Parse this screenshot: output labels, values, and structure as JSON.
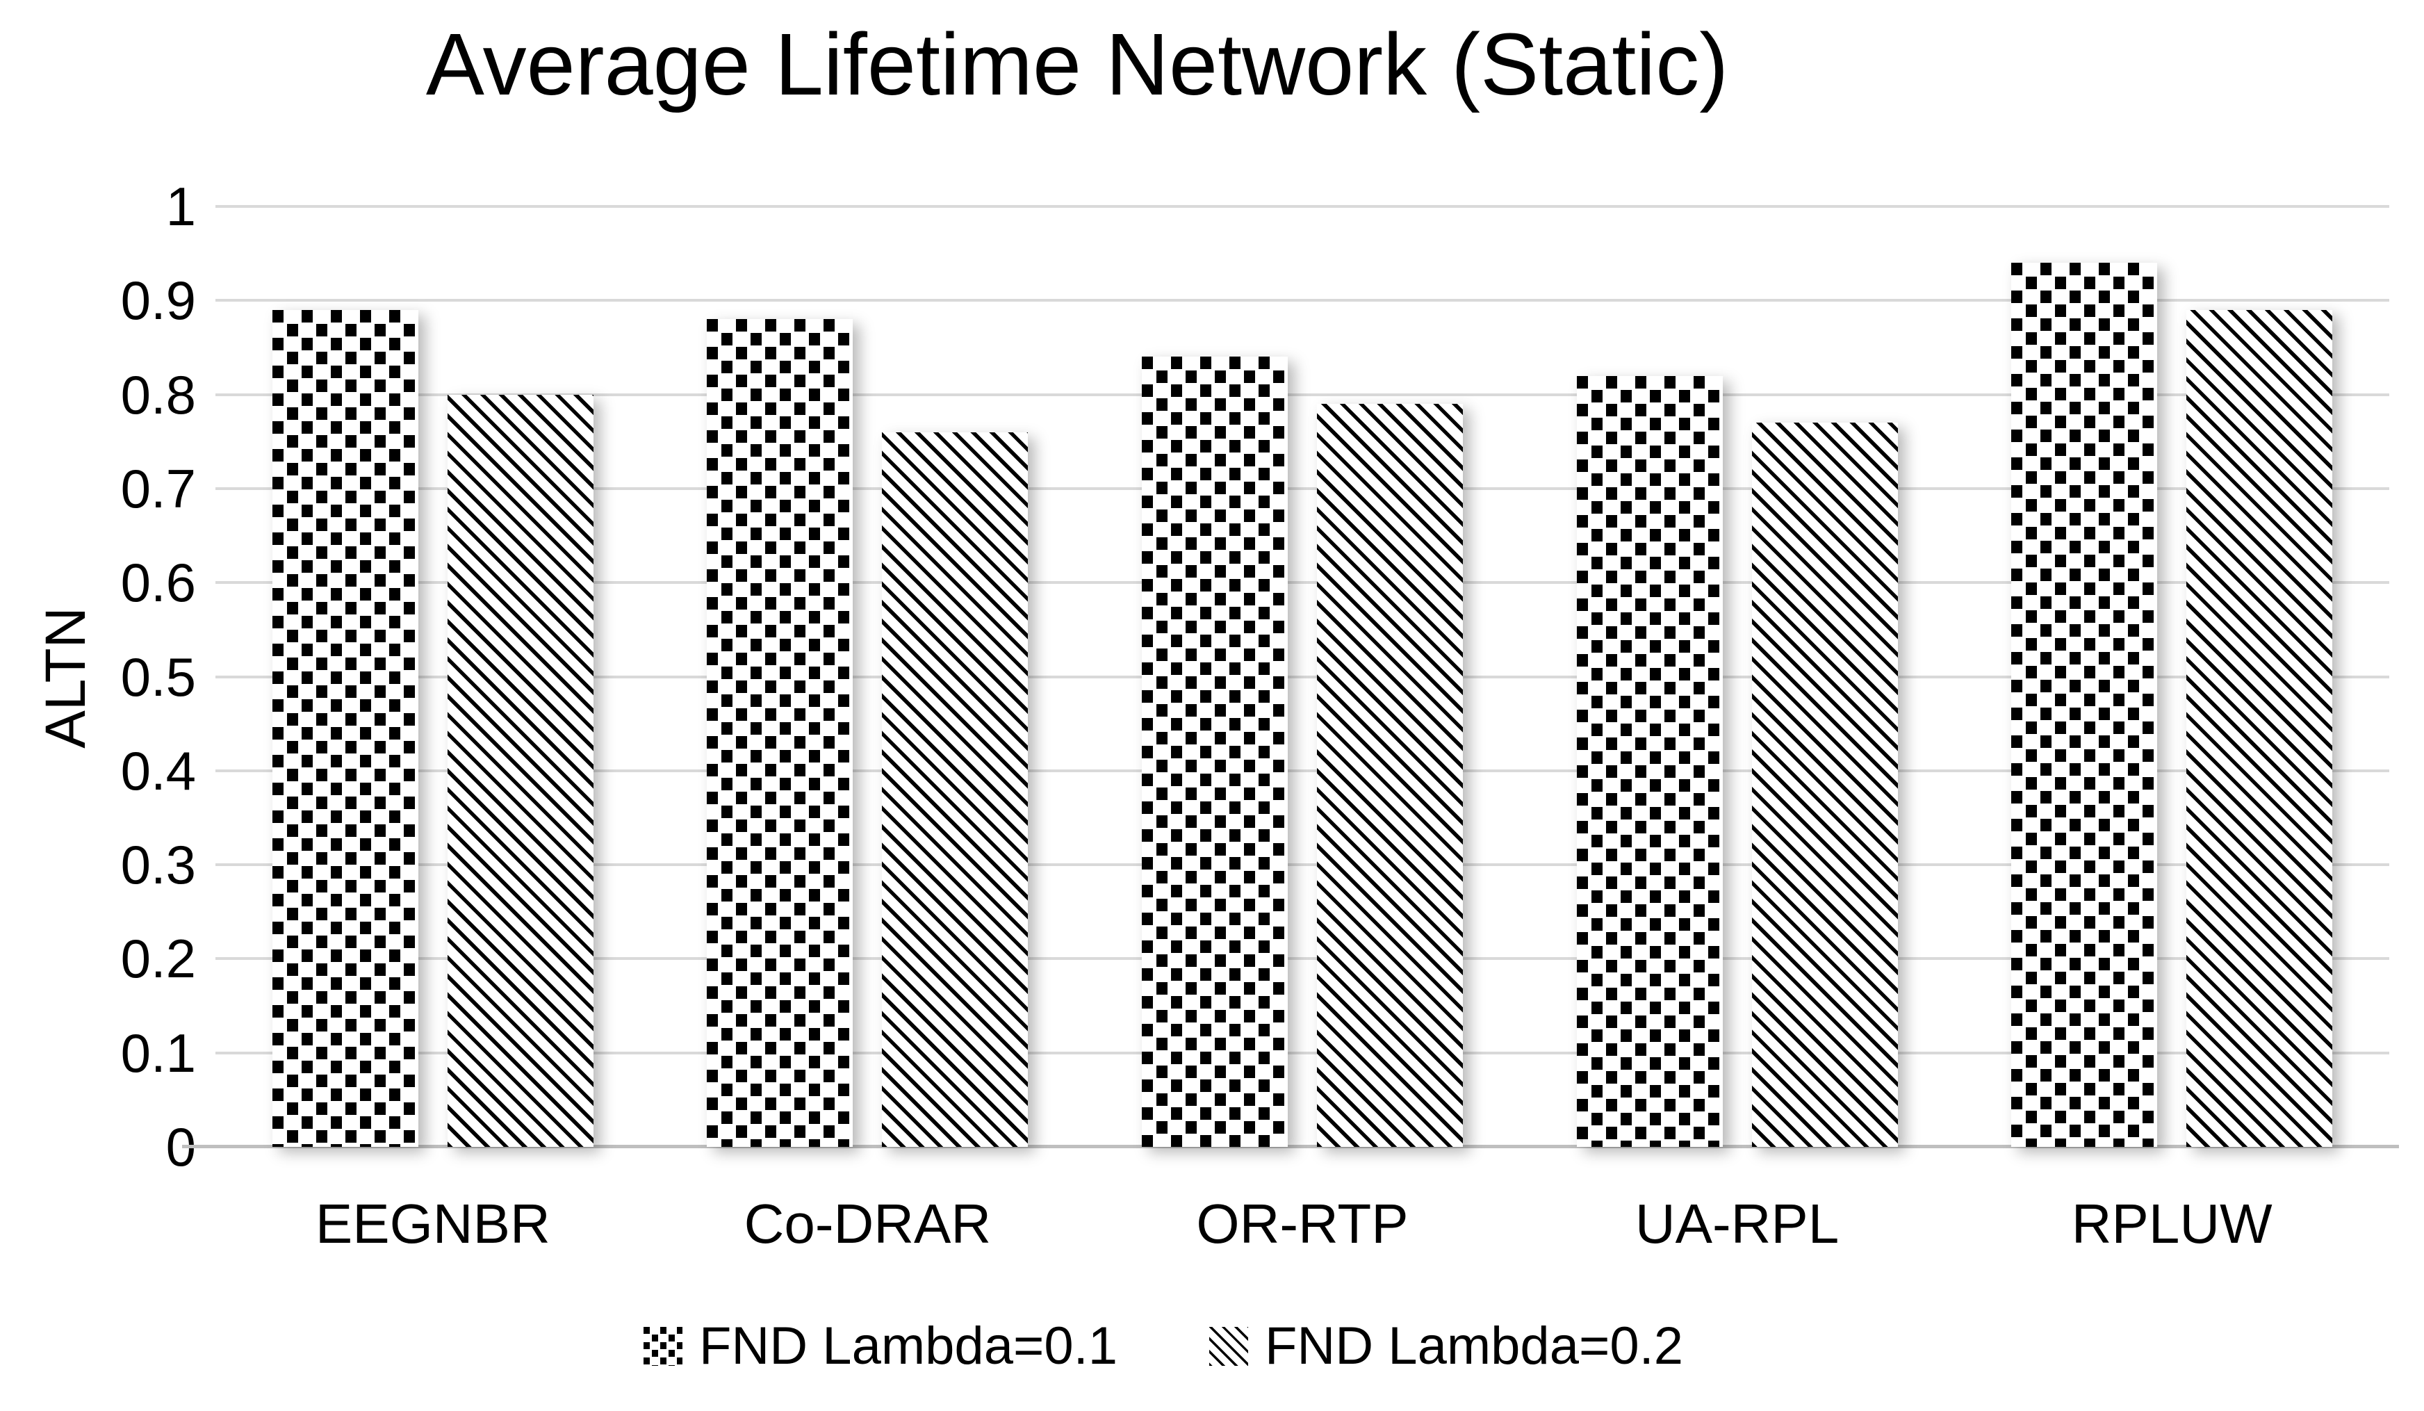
{
  "chart_data": {
    "type": "bar",
    "title": "Average Lifetime Network (Static)",
    "categories": [
      "EEGNBR",
      "Co-DRAR",
      "OR-RTP",
      "UA-RPL",
      "RPLUW"
    ],
    "series": [
      {
        "name": "FND Lambda=0.1",
        "pattern": "black-checker-on-white",
        "values": [
          0.89,
          0.88,
          0.84,
          0.82,
          0.94
        ]
      },
      {
        "name": "FND Lambda=0.2",
        "pattern": "black-diagonal-stripes-on-white",
        "values": [
          0.8,
          0.76,
          0.79,
          0.77,
          0.89
        ]
      }
    ],
    "xlabel": "",
    "ylabel": "ALTN",
    "ylim": [
      0,
      1
    ],
    "ytick_step": 0.1,
    "ytick_labels": [
      "1",
      "0.9",
      "0.8",
      "0.7",
      "0.6",
      "0.5",
      "0.4",
      "0.3",
      "0.2",
      "0.1",
      "0"
    ],
    "grid": "horizontal",
    "gridline_color": "#d9d9d9",
    "axis_line_color": "#bfbfbf",
    "text_color": "#000000",
    "background_color": "#ffffff",
    "legend_position": "bottom"
  }
}
